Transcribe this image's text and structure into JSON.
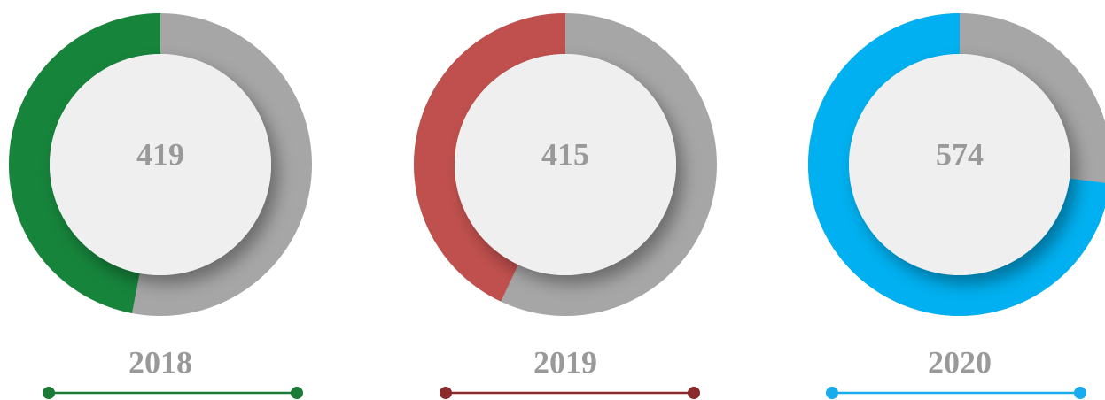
{
  "items": [
    {
      "value": "419",
      "year": "2018",
      "share": 47,
      "color": "#16843b",
      "line_color": "#1a7a36"
    },
    {
      "value": "415",
      "year": "2019",
      "share": 43,
      "color": "#c0504d",
      "line_color": "#8b2a2a"
    },
    {
      "value": "574",
      "year": "2020",
      "share": 73,
      "color": "#00b0f0",
      "line_color": "#1aabec"
    }
  ],
  "track_color": "#a6a6a6"
}
